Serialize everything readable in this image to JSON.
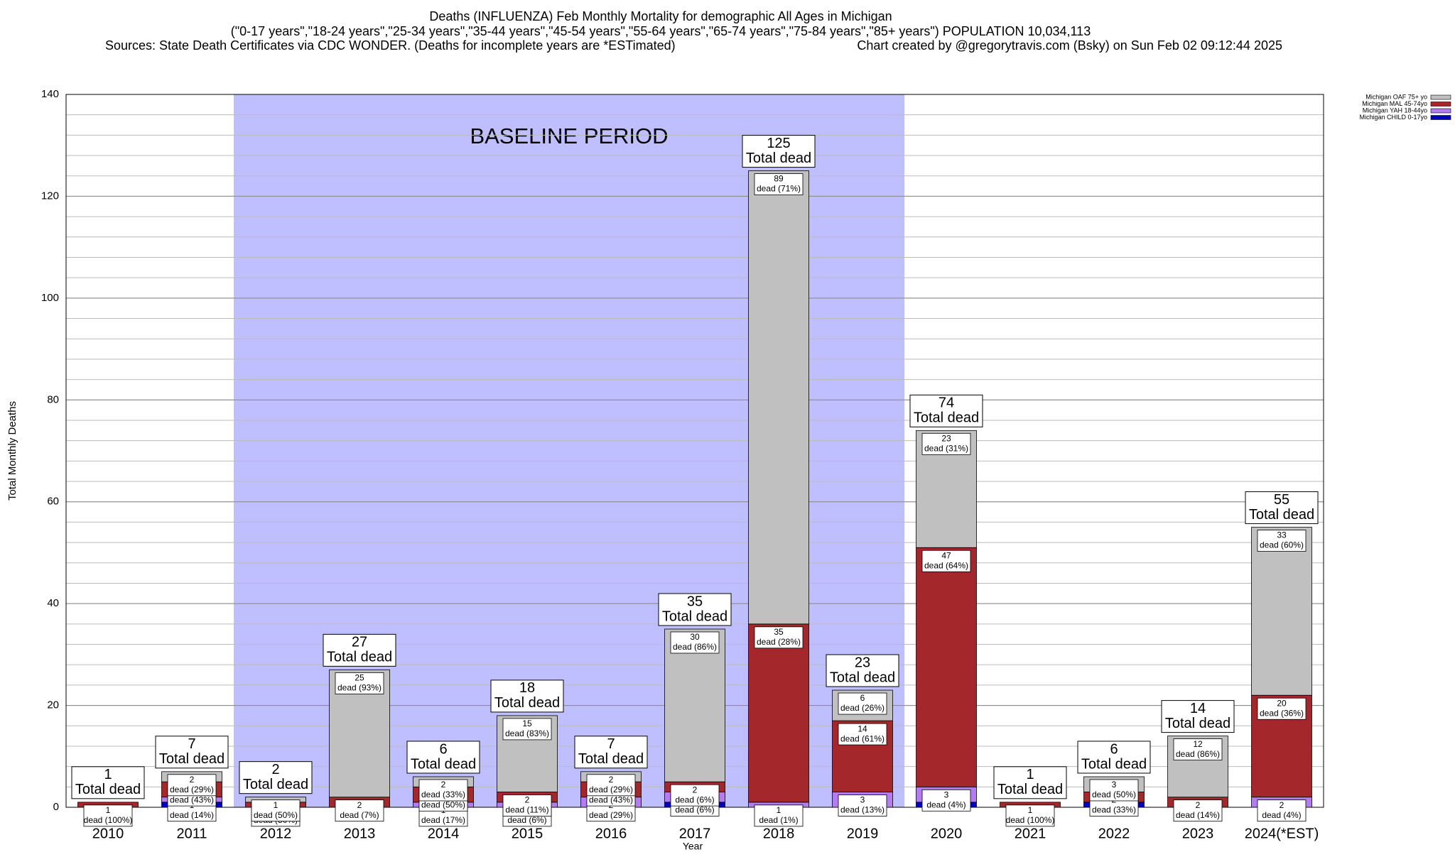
{
  "chart_data": {
    "type": "stacked_bar",
    "title": "Deaths (INFLUENZA) Feb Monthly Mortality for demographic All Ages in Michigan",
    "subtitle": "(\"0-17 years\",\"18-24 years\",\"25-34 years\",\"35-44 years\",\"45-54 years\",\"55-64 years\",\"65-74 years\",\"75-84 years\",\"85+ years\") POPULATION 10,034,113",
    "sources": "Sources: State Death Certificates via CDC WONDER. (Deaths for incomplete years are *ESTimated)",
    "credit": "Chart created by @gregorytravis.com (Bsky) on Sun Feb 02 09:12:44 2025",
    "x_label": "Year",
    "y_label": "Total Monthly Deaths",
    "categories": [
      "2010",
      "2011",
      "2012",
      "2013",
      "2014",
      "2015",
      "2016",
      "2017",
      "2018",
      "2019",
      "2020",
      "2021",
      "2022",
      "2023",
      "2024(*EST)"
    ],
    "shaded_region": {
      "label": "BASELINE PERIOD",
      "from": "2012",
      "to": "2019",
      "color": "#bfbfff"
    },
    "totals": [
      1,
      7,
      2,
      27,
      6,
      18,
      7,
      35,
      125,
      23,
      74,
      1,
      6,
      14,
      55
    ],
    "total_label": "Total dead",
    "series": [
      {
        "name": "Michigan OAF 75+ yo",
        "color": "#c0c0c0",
        "values": [
          0,
          2,
          1,
          25,
          2,
          15,
          2,
          30,
          89,
          6,
          23,
          0,
          3,
          12,
          33
        ],
        "share_labels": [
          null,
          "dead (29%)",
          "dead (50%)",
          "dead (93%)",
          "dead (33%)",
          "dead (83%)",
          "dead (29%)",
          "dead (86%)",
          "dead (71%)",
          "dead (26%)",
          "dead (31%)",
          null,
          "dead (50%)",
          "dead (86%)",
          "dead (60%)"
        ]
      },
      {
        "name": "Michigan MAL 45-74yo",
        "color": "#a4282b",
        "values": [
          1,
          3,
          1,
          2,
          3,
          2,
          3,
          2,
          35,
          14,
          47,
          1,
          2,
          2,
          20
        ],
        "share_labels": [
          "dead (100%)",
          "dead (43%)",
          "dead (50%)",
          "dead (7%)",
          "dead (50%)",
          "dead (11%)",
          "dead (43%)",
          "dead (6%)",
          "dead (28%)",
          "dead (61%)",
          "dead (64%)",
          "dead (100%)",
          "dead (33%)",
          "dead (14%)",
          "dead (36%)"
        ]
      },
      {
        "name": "Michigan YAH 18-44yo",
        "color": "#b37cf0",
        "values": [
          0,
          1,
          0,
          0,
          1,
          1,
          2,
          2,
          1,
          3,
          3,
          0,
          0,
          0,
          2
        ],
        "share_labels": [
          null,
          "dead (14%)",
          null,
          null,
          "dead (17%)",
          "dead (6%)",
          "dead (29%)",
          "dead (6%)",
          "dead (1%)",
          "dead (13%)",
          "dead (4%)",
          null,
          null,
          null,
          "dead (4%)"
        ]
      },
      {
        "name": "Michigan CHILD 0-17yo",
        "color": "#0000c8",
        "values": [
          0,
          1,
          0,
          0,
          0,
          0,
          0,
          1,
          0,
          0,
          1,
          0,
          1,
          0,
          0
        ]
      }
    ],
    "ylim": [
      0,
      140
    ],
    "yticks": [
      0,
      20,
      40,
      60,
      80,
      100,
      120,
      140
    ],
    "minor_grid_step": 4,
    "grid": true,
    "legend": "top-right"
  }
}
